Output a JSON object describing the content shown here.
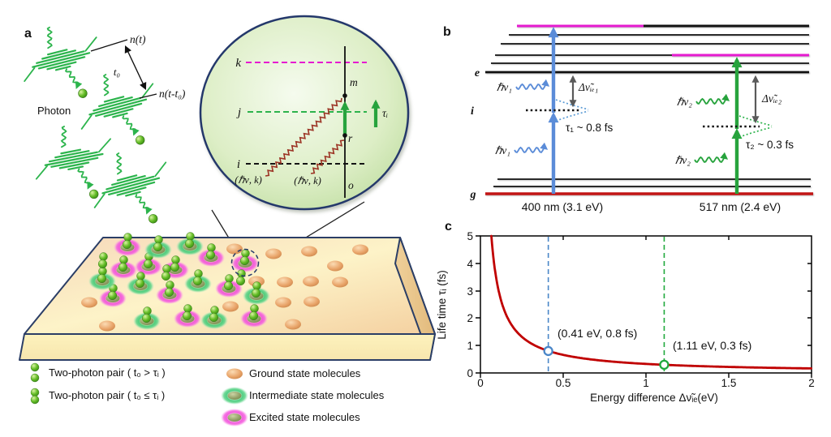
{
  "panel_a": {
    "label": "a",
    "photon_label": "Photon",
    "n_t": "n(t)",
    "t0": "t₀",
    "n_t_t0": "n(t-t₀)",
    "inset": {
      "level_k": "k",
      "level_j": "j",
      "level_i": "i",
      "point_m": "m",
      "point_r": "r",
      "point_o": "o",
      "tau_i": "τᵢ",
      "hv_k": "(ℏν, k)"
    },
    "legend": [
      {
        "label": "Two-photon pair ( t₀ > τᵢ )"
      },
      {
        "label": "Two-photon pair ( t₀ ≤ τᵢ )"
      },
      {
        "label": "Ground state molecules"
      },
      {
        "label": "Intermediate state molecules"
      },
      {
        "label": "Excited state molecules"
      }
    ]
  },
  "panel_b": {
    "label": "b",
    "level_e": "e",
    "level_i": "i",
    "level_g": "g",
    "hv1": "ℏν₁",
    "hv2": "ℏν₂",
    "delta_ie1": "Δν̃ᵢₑ₁",
    "delta_ie2": "Δν̃ᵢₑ₂",
    "tau1": "τ₁ ~ 0.8 fs",
    "tau2": "τ₂ ~ 0.3 fs",
    "transition1": "400 nm (3.1 eV)",
    "transition2": "517 nm (2.4 eV)"
  },
  "chart_data": {
    "type": "line",
    "panel_label": "c",
    "xlabel": "Energy difference Δν̃ᵢₑ(eV)",
    "ylabel": "Life time τᵢ (fs)",
    "xlim": [
      0,
      2
    ],
    "ylim": [
      0,
      5
    ],
    "x_ticks": [
      "0",
      "0.5",
      "1",
      "1.5",
      "2"
    ],
    "y_ticks": [
      "0",
      "1",
      "2",
      "3",
      "4",
      "5"
    ],
    "grid": false,
    "curve": {
      "type": "hyperbola",
      "formula": "tau = k / dE",
      "k": 0.33,
      "color": "#c00000"
    },
    "points": [
      {
        "x": 0.41,
        "y": 0.8,
        "label": "(0.41 eV, 0.8 fs)",
        "color": "#4a86c8"
      },
      {
        "x": 1.11,
        "y": 0.3,
        "label": "(1.11 eV, 0.3 fs)",
        "color": "#1fa83c"
      }
    ]
  },
  "colors": {
    "photon_green": "#2cb44c",
    "magenta_level": "#e61ad0",
    "blue_arrow": "#5b8cd8",
    "green_arrow": "#27a33d",
    "ground_red": "#c21515",
    "zigzag_red": "#9c3425"
  }
}
